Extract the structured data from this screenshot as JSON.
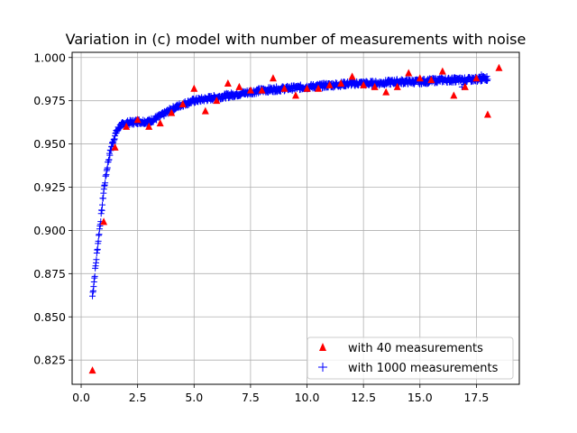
{
  "chart_data": {
    "type": "scatter",
    "title": "Variation in (c) model with number of measurements with noise",
    "xlabel": "",
    "ylabel": "",
    "xlim": [
      -0.4,
      19.4
    ],
    "ylim": [
      0.811,
      1.003
    ],
    "x_ticks": [
      0,
      2.5,
      5,
      7.5,
      10,
      12.5,
      15,
      17.5
    ],
    "x_tick_labels": [
      "0.0",
      "2.5",
      "5.0",
      "7.5",
      "10.0",
      "12.5",
      "15.0",
      "17.5"
    ],
    "y_ticks": [
      0.825,
      0.85,
      0.875,
      0.9,
      0.925,
      0.95,
      0.975,
      1.0
    ],
    "y_tick_labels": [
      "0.825",
      "0.850",
      "0.875",
      "0.900",
      "0.925",
      "0.950",
      "0.975",
      "1.000"
    ],
    "grid": true,
    "legend_position": "bottom-right",
    "series": [
      {
        "name": "with 40 measurements",
        "marker": "triangle",
        "color": "#ff0000",
        "points": [
          [
            0.5,
            0.819
          ],
          [
            1.0,
            0.905
          ],
          [
            1.5,
            0.948
          ],
          [
            2.0,
            0.96
          ],
          [
            2.5,
            0.964
          ],
          [
            3.0,
            0.96
          ],
          [
            3.5,
            0.962
          ],
          [
            4.0,
            0.968
          ],
          [
            4.5,
            0.973
          ],
          [
            5.0,
            0.982
          ],
          [
            5.5,
            0.969
          ],
          [
            6.0,
            0.975
          ],
          [
            6.5,
            0.985
          ],
          [
            7.0,
            0.983
          ],
          [
            7.5,
            0.981
          ],
          [
            8.0,
            0.981
          ],
          [
            8.5,
            0.988
          ],
          [
            9.0,
            0.982
          ],
          [
            9.5,
            0.978
          ],
          [
            10.0,
            0.982
          ],
          [
            10.5,
            0.982
          ],
          [
            11.0,
            0.984
          ],
          [
            11.5,
            0.985
          ],
          [
            12.0,
            0.989
          ],
          [
            12.5,
            0.984
          ],
          [
            13.0,
            0.983
          ],
          [
            13.5,
            0.98
          ],
          [
            14.0,
            0.983
          ],
          [
            14.5,
            0.991
          ],
          [
            15.0,
            0.988
          ],
          [
            15.5,
            0.987
          ],
          [
            16.0,
            0.992
          ],
          [
            16.5,
            0.978
          ],
          [
            17.0,
            0.983
          ],
          [
            17.5,
            0.988
          ],
          [
            18.0,
            0.967
          ],
          [
            18.5,
            0.994
          ]
        ]
      },
      {
        "name": "with 1000 measurements",
        "marker": "plus",
        "color": "#0000ff",
        "curve": [
          [
            0.5,
            0.862
          ],
          [
            0.6,
            0.874
          ],
          [
            0.7,
            0.887
          ],
          [
            0.8,
            0.899
          ],
          [
            0.9,
            0.91
          ],
          [
            1.0,
            0.923
          ],
          [
            1.1,
            0.932
          ],
          [
            1.2,
            0.94
          ],
          [
            1.3,
            0.946
          ],
          [
            1.4,
            0.951
          ],
          [
            1.5,
            0.955
          ],
          [
            1.6,
            0.958
          ],
          [
            1.7,
            0.96
          ],
          [
            1.8,
            0.961
          ],
          [
            2.0,
            0.962
          ],
          [
            2.5,
            0.963
          ],
          [
            3.0,
            0.963
          ],
          [
            3.5,
            0.966
          ],
          [
            4.0,
            0.97
          ],
          [
            4.5,
            0.973
          ],
          [
            5.0,
            0.975
          ],
          [
            6.0,
            0.977
          ],
          [
            7.0,
            0.979
          ],
          [
            8.0,
            0.981
          ],
          [
            9.0,
            0.982
          ],
          [
            10.0,
            0.983
          ],
          [
            11.0,
            0.984
          ],
          [
            12.0,
            0.985
          ],
          [
            13.0,
            0.985
          ],
          [
            14.0,
            0.986
          ],
          [
            15.0,
            0.986
          ],
          [
            16.0,
            0.987
          ],
          [
            17.0,
            0.987
          ],
          [
            18.0,
            0.988
          ]
        ],
        "count": 1000,
        "noise": 0.0015,
        "x_range": [
          0.5,
          18.0
        ]
      }
    ]
  }
}
